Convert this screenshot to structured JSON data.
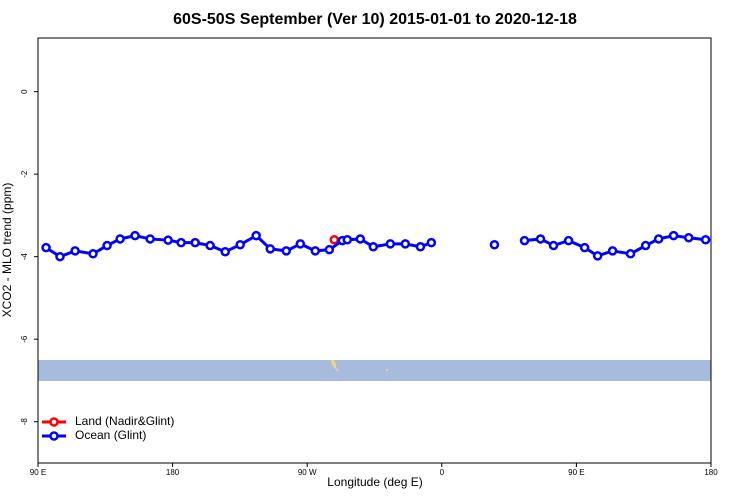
{
  "chart_data": {
    "type": "line",
    "title": "60S-50S September (Ver 10)   2015-01-01 to 2020-12-18",
    "x_label": "Longitude (deg E)",
    "y_label": "XCO2 - MLO trend (ppm)",
    "xlim": [
      90,
      540
    ],
    "xticks": [
      {
        "value": 90,
        "label": "90 E"
      },
      180,
      {
        "value": 270,
        "label": "90 W"
      },
      {
        "value": 360,
        "label": "0"
      },
      {
        "value": 450,
        "label": "90 E"
      },
      {
        "value": 540,
        "label": "180"
      }
    ],
    "ylim": [
      -9.0,
      1.3
    ],
    "yticks": [
      0,
      -2,
      -4,
      -6,
      -8
    ],
    "legend": "bottom-left",
    "series": [
      {
        "name": "Land (Nadir&Glint)",
        "color": "#ff0000",
        "x": [
          288.1
        ],
        "values": [
          -3.59
        ]
      },
      {
        "name": "Ocean (Glint)",
        "color": "#0000ff",
        "x": [
          95.4,
          104.7,
          114.8,
          126.8,
          136.2,
          144.9,
          154.9,
          165.0,
          177.0,
          185.7,
          195.1,
          205.1,
          215.2,
          225.2,
          235.9,
          245.3,
          256.0,
          265.4,
          275.4,
          284.8,
          293.5,
          296.8,
          305.5,
          314.2,
          325.6,
          335.6,
          345.7,
          353.0,
          374.0,
          395.2,
          405.0,
          415.3,
          426.0,
          434.7,
          444.8,
          455.5,
          464.2,
          474.2,
          486.2,
          496.3,
          505.0,
          515.0,
          525.1,
          536.4
        ],
        "values": [
          -3.78,
          -4.0,
          -3.86,
          -3.93,
          -3.73,
          -3.57,
          -3.49,
          -3.57,
          -3.6,
          -3.66,
          -3.66,
          -3.73,
          -3.88,
          -3.71,
          -3.49,
          -3.81,
          -3.86,
          -3.69,
          -3.86,
          -3.83,
          -3.61,
          -3.59,
          -3.57,
          -3.76,
          -3.69,
          -3.69,
          -3.76,
          -3.66,
          null,
          -3.71,
          null,
          -3.61,
          -3.57,
          -3.73,
          -3.61,
          -3.78,
          -3.98,
          -3.86,
          -3.93,
          -3.73,
          -3.57,
          -3.49,
          -3.54,
          -3.59
        ]
      }
    ]
  }
}
